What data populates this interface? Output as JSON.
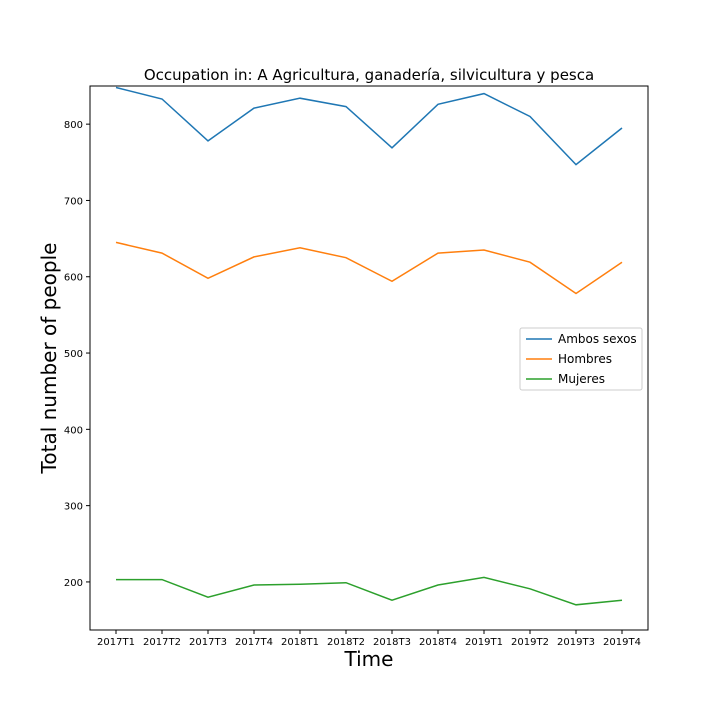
{
  "chart_data": {
    "type": "line",
    "title": "Occupation in: A Agricultura, ganadería, silvicultura y pesca",
    "xlabel": "Time",
    "ylabel": "Total number of people",
    "categories": [
      "2017T1",
      "2017T2",
      "2017T3",
      "2017T4",
      "2018T1",
      "2018T2",
      "2018T3",
      "2018T4",
      "2019T1",
      "2019T2",
      "2019T3",
      "2019T4"
    ],
    "ylim": [
      137,
      850
    ],
    "yticks": [
      200,
      300,
      400,
      500,
      600,
      700,
      800
    ],
    "grid": false,
    "legend_position": "center-right",
    "series": [
      {
        "name": "Ambos sexos",
        "color": "#1f77b4",
        "values": [
          848,
          833,
          778,
          821,
          834,
          823,
          769,
          826,
          840,
          810,
          747,
          795
        ]
      },
      {
        "name": "Hombres",
        "color": "#ff7f0e",
        "values": [
          645,
          631,
          598,
          626,
          638,
          625,
          594,
          631,
          635,
          619,
          578,
          619
        ]
      },
      {
        "name": "Mujeres",
        "color": "#2ca02c",
        "values": [
          203,
          203,
          180,
          196,
          197,
          199,
          176,
          196,
          206,
          191,
          170,
          176
        ]
      }
    ]
  }
}
